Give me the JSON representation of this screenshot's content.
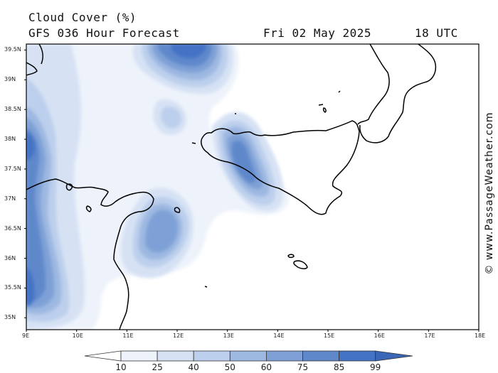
{
  "header": {
    "title": "Cloud Cover (%)",
    "model_line": "GFS 036 Hour Forecast",
    "date": "Fri 02 May 2025",
    "time": "18 UTC"
  },
  "credit": "© www.PassageWeather.com",
  "map": {
    "lon_range": [
      9,
      18
    ],
    "lat_range": [
      34.8,
      39.6
    ],
    "lat_ticks": [
      "39.5N",
      "39N",
      "38.5N",
      "38N",
      "37.5N",
      "37N",
      "36.5N",
      "36N",
      "35.5N",
      "35N"
    ],
    "lon_ticks": [
      "9E",
      "10E",
      "11E",
      "12E",
      "13E",
      "14E",
      "15E",
      "16E",
      "17E",
      "18E"
    ]
  },
  "colorbar": {
    "labels": [
      "10",
      "25",
      "40",
      "50",
      "60",
      "75",
      "85",
      "99"
    ],
    "colors": [
      "#ffffff",
      "#eef3fb",
      "#d6e2f4",
      "#bccfec",
      "#9db8e1",
      "#7ea0d6",
      "#5f88cb",
      "#4472c4",
      "#3a66b8"
    ]
  },
  "colors": {
    "level1": "#eef3fb",
    "level2": "#d6e2f4",
    "level3": "#bccfec",
    "level4": "#9db8e1",
    "level5": "#7ea0d6",
    "level6": "#5f88cb",
    "level7": "#4472c4",
    "coast": "#000000",
    "frame": "#000000"
  }
}
